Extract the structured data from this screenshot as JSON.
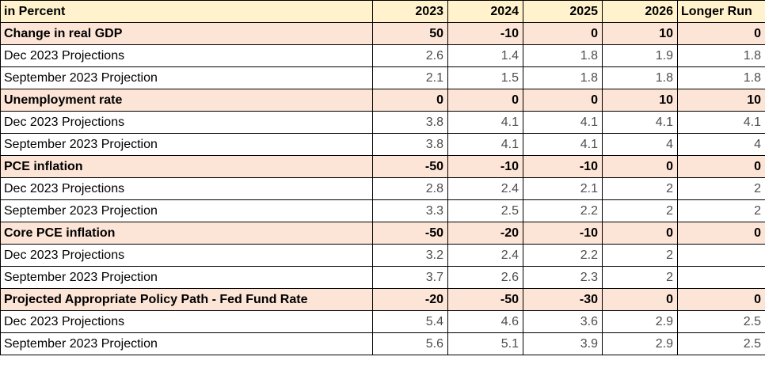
{
  "table": {
    "header": {
      "label": "in Percent",
      "columns": [
        "2023",
        "2024",
        "2025",
        "2026",
        "Longer Run"
      ]
    },
    "sections": [
      {
        "title": "Change in real GDP",
        "values": [
          "50",
          "-10",
          "0",
          "10",
          "0"
        ],
        "rows": [
          {
            "label": "Dec 2023 Projections",
            "values": [
              "2.6",
              "1.4",
              "1.8",
              "1.9",
              "1.8"
            ]
          },
          {
            "label": "September 2023 Projection",
            "values": [
              "2.1",
              "1.5",
              "1.8",
              "1.8",
              "1.8"
            ]
          }
        ]
      },
      {
        "title": "Unemployment rate",
        "values": [
          "0",
          "0",
          "0",
          "10",
          "10"
        ],
        "rows": [
          {
            "label": "Dec 2023 Projections",
            "values": [
              "3.8",
              "4.1",
              "4.1",
              "4.1",
              "4.1"
            ]
          },
          {
            "label": "September 2023 Projection",
            "values": [
              "3.8",
              "4.1",
              "4.1",
              "4",
              "4"
            ]
          }
        ]
      },
      {
        "title": "PCE inflation",
        "values": [
          "-50",
          "-10",
          "-10",
          "0",
          "0"
        ],
        "rows": [
          {
            "label": "Dec 2023 Projections",
            "values": [
              "2.8",
              "2.4",
              "2.1",
              "2",
              "2"
            ]
          },
          {
            "label": "September 2023 Projection",
            "values": [
              "3.3",
              "2.5",
              "2.2",
              "2",
              "2"
            ]
          }
        ]
      },
      {
        "title": "Core PCE inflation",
        "values": [
          "-50",
          "-20",
          "-10",
          "0",
          "0"
        ],
        "rows": [
          {
            "label": "Dec 2023 Projections",
            "values": [
              "3.2",
              "2.4",
              "2.2",
              "2",
              ""
            ]
          },
          {
            "label": "September 2023 Projection",
            "values": [
              "3.7",
              "2.6",
              "2.3",
              "2",
              ""
            ]
          }
        ]
      },
      {
        "title": "Projected Appropriate Policy Path - Fed Fund Rate",
        "values": [
          "-20",
          "-50",
          "-30",
          "0",
          "0"
        ],
        "rows": [
          {
            "label": "Dec 2023 Projections",
            "values": [
              "5.4",
              "4.6",
              "3.6",
              "2.9",
              "2.5"
            ]
          },
          {
            "label": "September 2023 Projection",
            "values": [
              "5.6",
              "5.1",
              "3.9",
              "2.9",
              "2.5"
            ]
          }
        ]
      }
    ]
  },
  "colors": {
    "header_bg": "#fff2cc",
    "section_bg": "#fce4d6",
    "data_text": "#4d4d4d",
    "border": "#000000"
  }
}
